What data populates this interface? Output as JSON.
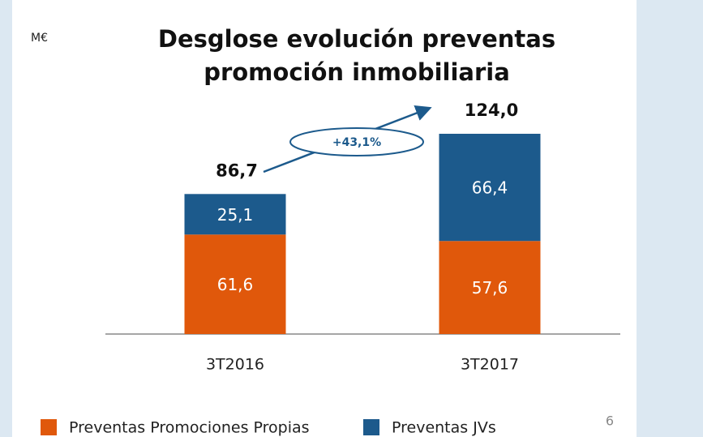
{
  "chart_data": {
    "type": "stacked_bar",
    "unit": "M€",
    "title": [
      "Desglose evolución preventas",
      "promoción inmobiliaria"
    ],
    "categories": [
      "3T2016",
      "3T2017"
    ],
    "series": [
      {
        "name": "Preventas Promociones Propias",
        "color": "#e0580b",
        "values": [
          61.6,
          57.6
        ],
        "value_labels": [
          "61,6",
          "57,6"
        ]
      },
      {
        "name": "Preventas JVs",
        "color": "#1c5a8c",
        "values": [
          25.1,
          66.4
        ],
        "value_labels": [
          "25,1",
          "66,4"
        ]
      }
    ],
    "totals": [
      86.7,
      124.0
    ],
    "total_labels": [
      "86,7",
      "124,0"
    ],
    "annotation": "+43,1%",
    "page_number": "6"
  }
}
